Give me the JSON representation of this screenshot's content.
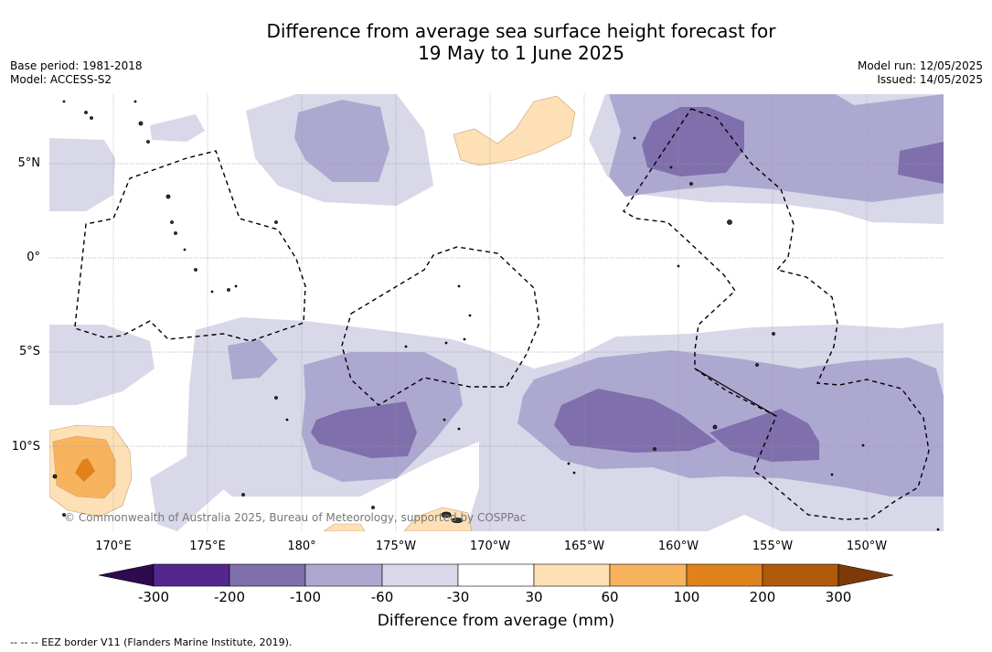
{
  "title": {
    "line1": "Difference from average sea surface height forecast for",
    "line2": "19 May to 1 June 2025"
  },
  "meta_left": {
    "base_period": "Base period: 1981-2018",
    "model": "Model: ACCESS-S2"
  },
  "meta_right": {
    "model_run": "Model run: 12/05/2025",
    "issued": "Issued: 14/05/2025"
  },
  "lat_labels": [
    "5°N",
    "0°",
    "5°S",
    "10°S"
  ],
  "lon_labels": [
    "170°E",
    "175°E",
    "180°",
    "175°W",
    "170°W",
    "165°W",
    "160°W",
    "155°W",
    "150°W"
  ],
  "copyright": "© Commonwealth of Australia 2025, Bureau of Meteorology, supported by COSPPac",
  "colorbar": {
    "title": "Difference from average (mm)",
    "ticks": [
      "-300",
      "-200",
      "-100",
      "-60",
      "-30",
      "30",
      "60",
      "100",
      "200",
      "300"
    ],
    "colors": {
      "below_-300": "#2d0b4e",
      "-300_-200": "#54278f",
      "-200_-100": "#7f6fac",
      "-100_-60": "#ada8d0",
      "-60_-30": "#d8d8e9",
      "-30_30": "#ffffff",
      "30_60": "#fde0b6",
      "60_100": "#f8b35d",
      "100_200": "#e0821b",
      "200_300": "#b05a0b",
      "above_300": "#7d3a08"
    }
  },
  "eez_note": "--  --  -- EEZ border V11 (Flanders Marine Institute, 2019)."
}
